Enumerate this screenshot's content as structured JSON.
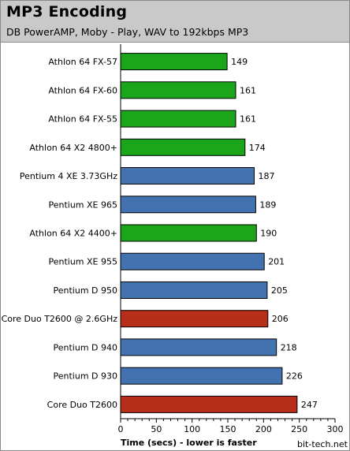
{
  "header": {
    "title": "MP3 Encoding",
    "subtitle": "DB PowerAMP, Moby - Play, WAV to 192kbps MP3"
  },
  "watermark": "bit-tech.net",
  "colors": {
    "amd": "#1aa51a",
    "intel_pentium": "#4272b0",
    "intel_core": "#b72e1a",
    "header_bg": "#c9c9c9"
  },
  "chart_data": {
    "type": "bar",
    "orientation": "horizontal",
    "title": "MP3 Encoding",
    "subtitle": "DB PowerAMP, Moby - Play, WAV to 192kbps MP3",
    "xlabel": "Time (secs) - lower is faster",
    "ylabel": "",
    "xlim": [
      0,
      300
    ],
    "xticks": [
      0,
      50,
      100,
      150,
      200,
      250,
      300
    ],
    "grid": false,
    "categories": [
      "Athlon 64 FX-57",
      "Athlon 64 FX-60",
      "Athlon 64 FX-55",
      "Athlon 64 X2 4800+",
      "Pentium 4 XE 3.73GHz",
      "Pentium XE 965",
      "Athlon 64 X2 4400+",
      "Pentium XE 955",
      "Pentium D 950",
      "Core Duo T2600 @ 2.6GHz",
      "Pentium D 940",
      "Pentium D 930",
      "Core Duo T2600"
    ],
    "values": [
      149,
      161,
      161,
      174,
      187,
      189,
      190,
      201,
      205,
      206,
      218,
      226,
      247
    ],
    "bar_colors": [
      "#1aa51a",
      "#1aa51a",
      "#1aa51a",
      "#1aa51a",
      "#4272b0",
      "#4272b0",
      "#1aa51a",
      "#4272b0",
      "#4272b0",
      "#b72e1a",
      "#4272b0",
      "#4272b0",
      "#b72e1a"
    ]
  }
}
